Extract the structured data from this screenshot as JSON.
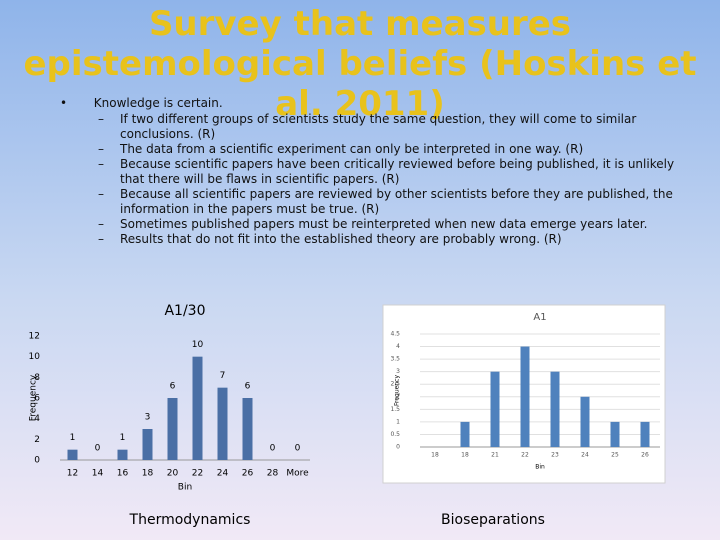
{
  "title": "Survey that measures epistemological beliefs (Hoskins et al. 2011)",
  "bullet": {
    "text": "Knowledge is certain.",
    "items": [
      "If two different groups of scientists study the same question, they will come to similar conclusions. (R)",
      "The data from a scientific experiment can only be interpreted in one way. (R)",
      "Because scientific papers have been critically reviewed before being published, it is unlikely that there will be flaws in scientific papers. (R)",
      "Because all scientific papers are reviewed by other scientists before they are published, the information in the papers must be true. (R)",
      "Sometimes published papers must be reinterpreted when new data emerge years later.",
      "Results that do not fit into the established theory are probably wrong. (R)"
    ]
  },
  "captions": [
    "Thermodynamics",
    "Bioseparations"
  ],
  "chart_data": [
    {
      "type": "bar",
      "title": "A1/30",
      "x_label": "Bin",
      "y_label": "Frequency",
      "categories": [
        "12",
        "14",
        "16",
        "18",
        "20",
        "22",
        "24",
        "26",
        "28",
        "More"
      ],
      "values": [
        1,
        0,
        1,
        3,
        6,
        10,
        7,
        6,
        0,
        0
      ],
      "color": "#4a6fa5",
      "ylim": [
        0,
        12
      ],
      "yticks": [
        0,
        2,
        4,
        6,
        8,
        10,
        12
      ],
      "data_labels": true
    },
    {
      "type": "bar",
      "title": "A1",
      "x_label": "Bin",
      "y_label": "Frequency",
      "categories": [
        "18",
        "18",
        "21",
        "22",
        "23",
        "24",
        "25",
        "26"
      ],
      "values": [
        0,
        1,
        3,
        4,
        3,
        2,
        1,
        1
      ],
      "color": "#4f81bd",
      "ylim": [
        0,
        4.5
      ],
      "yticks": [
        0,
        0.5,
        1,
        1.5,
        2,
        2.5,
        3,
        3.5,
        4,
        4.5
      ],
      "grid": true
    }
  ]
}
